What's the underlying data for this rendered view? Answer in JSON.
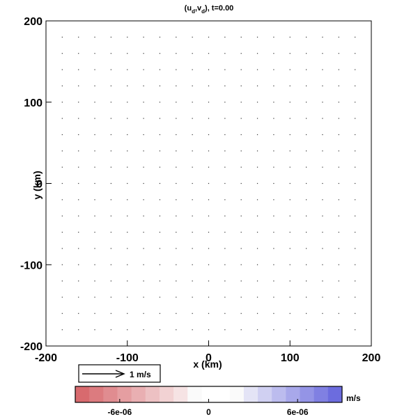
{
  "chart_data": {
    "type": "vector-field",
    "title": "(u_d,v_d), t=0.00",
    "title_parts": {
      "open": "(u",
      "sub1": "d",
      "mid": ",v",
      "sub2": "d",
      "close": "), t=0.00"
    },
    "xlabel": "x (km)",
    "ylabel": "y (km)",
    "xlim": [
      -200,
      200
    ],
    "ylim": [
      -200,
      200
    ],
    "x_ticks": [
      -200,
      -100,
      0,
      100,
      200
    ],
    "y_ticks": [
      -200,
      -100,
      0,
      100,
      200
    ],
    "x_tick_labels": [
      "-200",
      "-100",
      "0",
      "100",
      "200"
    ],
    "y_tick_labels": [
      "-200",
      "-100",
      "0",
      "100",
      "200"
    ],
    "grid_points": {
      "x": [
        -180,
        -160,
        -140,
        -120,
        -100,
        -80,
        -60,
        -40,
        -20,
        0,
        20,
        40,
        60,
        80,
        100,
        120,
        140,
        160,
        180
      ],
      "y": [
        180,
        160,
        140,
        120,
        100,
        80,
        60,
        40,
        20,
        0,
        -20,
        -40,
        -60,
        -80,
        -100,
        -120,
        -140,
        -160,
        -180
      ],
      "u": 0,
      "v": 0
    },
    "reference_vector": {
      "magnitude": 1,
      "label": "1 m/s"
    },
    "colorbar": {
      "unit": "m/s",
      "range": [
        -9e-06,
        9e-06
      ],
      "tick_values": [
        -6e-06,
        0,
        6e-06
      ],
      "tick_labels": [
        "-6e-06",
        "0",
        "6e-06"
      ],
      "colors": [
        "#d86a6e",
        "#dc7b7f",
        "#e08c90",
        "#e59ea1",
        "#e9afb2",
        "#edc1c3",
        "#f2d2d3",
        "#f6e3e4",
        "#fafafa",
        "#ffffff",
        "#ffffff",
        "#fafafa",
        "#e4e4f6",
        "#d0d0f2",
        "#bcbcee",
        "#a8a8ea",
        "#9494e6",
        "#8080e2",
        "#6c6cde"
      ]
    }
  }
}
